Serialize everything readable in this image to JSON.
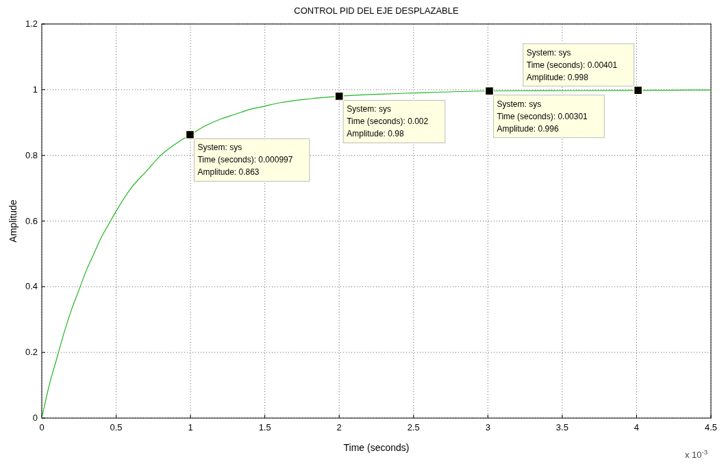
{
  "chart_data": {
    "type": "line",
    "title": "CONTROL PID DEL EJE DESPLAZABLE",
    "xlabel": "Time (seconds)",
    "ylabel": "Amplitude",
    "x": [
      0,
      0.05,
      0.1,
      0.15,
      0.2,
      0.25,
      0.3,
      0.35,
      0.4,
      0.45,
      0.5,
      0.6,
      0.7,
      0.8,
      0.9,
      1,
      1.1,
      1.2,
      1.3,
      1.4,
      1.5,
      1.6,
      1.8,
      2,
      2.25,
      2.5,
      3,
      3.5,
      4,
      4.5
    ],
    "series": [
      {
        "color": "#1fb51f",
        "values": [
          0,
          0.1,
          0.18,
          0.26,
          0.33,
          0.39,
          0.45,
          0.5,
          0.55,
          0.59,
          0.63,
          0.7,
          0.75,
          0.8,
          0.835,
          0.863,
          0.89,
          0.91,
          0.925,
          0.94,
          0.95,
          0.96,
          0.972,
          0.98,
          0.986,
          0.99,
          0.996,
          0.997,
          0.998,
          0.999
        ]
      }
    ],
    "xlim": [
      0,
      4.5
    ],
    "ylim": [
      0,
      1.2
    ],
    "xticks": [
      0,
      0.5,
      1,
      1.5,
      2,
      2.5,
      3,
      3.5,
      4,
      4.5
    ],
    "yticks": [
      0,
      0.2,
      0.4,
      0.6,
      0.8,
      1,
      1.2
    ],
    "grid": true,
    "line_style": "solid",
    "marker": "none",
    "annotations": [
      {
        "text": "System: sys\nTime (seconds): 0.000997\nAmplitude: 0.863",
        "x": 0.997,
        "y": 0.863
      },
      {
        "text": "System: sys\nTime (seconds): 0.002\nAmplitude: 0.98",
        "x": 2,
        "y": 0.98
      },
      {
        "text": "System: sys\nTime (seconds): 0.00301\nAmplitude: 0.996",
        "x": 3.01,
        "y": 0.996
      },
      {
        "text": "System: sys\nTime (seconds): 0.00401\nAmplitude: 0.998",
        "x": 4.01,
        "y": 0.998
      },
      "x 10$^{-3}$"
    ]
  }
}
